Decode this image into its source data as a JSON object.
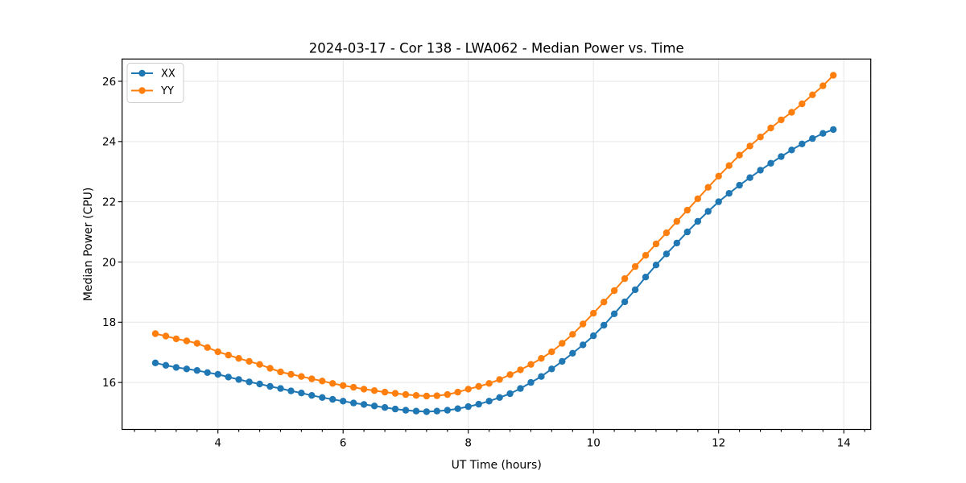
{
  "chart_data": {
    "type": "line",
    "title": "2024-03-17 - Cor 138 - LWA062 - Median Power vs. Time",
    "xlabel": "UT Time (hours)",
    "ylabel": "Median Power (CPU)",
    "xlim": [
      2.469,
      14.431
    ],
    "ylim": [
      14.44,
      26.74
    ],
    "x_ticks": [
      4,
      6,
      8,
      10,
      12,
      14
    ],
    "y_ticks": [
      16,
      18,
      20,
      22,
      24,
      26
    ],
    "x_minor_ticks": [
      2.667,
      3.0,
      3.333,
      3.667,
      4.333,
      4.667,
      5.0,
      5.333,
      5.667,
      6.333,
      6.667,
      7.0,
      7.333,
      7.667,
      8.333,
      8.667,
      9.0,
      9.333,
      9.667,
      10.333,
      10.667,
      11.0,
      11.333,
      11.667,
      12.333,
      12.667,
      13.0,
      13.333,
      13.667,
      14.333
    ],
    "grid": true,
    "legend_position": "upper left",
    "marker": "circle",
    "x": [
      3.0,
      3.167,
      3.333,
      3.5,
      3.667,
      3.833,
      4.0,
      4.167,
      4.333,
      4.5,
      4.667,
      4.833,
      5.0,
      5.167,
      5.333,
      5.5,
      5.667,
      5.833,
      6.0,
      6.167,
      6.333,
      6.5,
      6.667,
      6.833,
      7.0,
      7.167,
      7.333,
      7.5,
      7.667,
      7.833,
      8.0,
      8.167,
      8.333,
      8.5,
      8.667,
      8.833,
      9.0,
      9.167,
      9.333,
      9.5,
      9.667,
      9.833,
      10.0,
      10.167,
      10.333,
      10.5,
      10.667,
      10.833,
      11.0,
      11.167,
      11.333,
      11.5,
      11.667,
      11.833,
      12.0,
      12.167,
      12.333,
      12.5,
      12.667,
      12.833,
      13.0,
      13.167,
      13.333,
      13.5,
      13.667,
      13.833
    ],
    "series": [
      {
        "name": "XX",
        "color": "#1f77b4",
        "values": [
          16.65,
          16.57,
          16.5,
          16.45,
          16.4,
          16.33,
          16.27,
          16.18,
          16.1,
          16.02,
          15.95,
          15.87,
          15.8,
          15.72,
          15.65,
          15.57,
          15.5,
          15.44,
          15.38,
          15.32,
          15.27,
          15.22,
          15.17,
          15.12,
          15.08,
          15.05,
          15.03,
          15.05,
          15.08,
          15.13,
          15.2,
          15.28,
          15.38,
          15.5,
          15.63,
          15.8,
          16.0,
          16.2,
          16.45,
          16.7,
          16.97,
          17.25,
          17.55,
          17.9,
          18.28,
          18.68,
          19.08,
          19.5,
          19.9,
          20.27,
          20.63,
          21.0,
          21.35,
          21.68,
          22.0,
          22.28,
          22.55,
          22.8,
          23.05,
          23.28,
          23.5,
          23.72,
          23.92,
          24.1,
          24.27,
          24.4
        ]
      },
      {
        "name": "YY",
        "color": "#ff7f0e",
        "values": [
          17.62,
          17.54,
          17.45,
          17.38,
          17.3,
          17.16,
          17.02,
          16.91,
          16.8,
          16.7,
          16.6,
          16.47,
          16.35,
          16.27,
          16.2,
          16.12,
          16.05,
          15.97,
          15.9,
          15.84,
          15.78,
          15.73,
          15.68,
          15.64,
          15.6,
          15.57,
          15.55,
          15.56,
          15.6,
          15.68,
          15.78,
          15.87,
          15.97,
          16.1,
          16.26,
          16.42,
          16.6,
          16.8,
          17.02,
          17.3,
          17.6,
          17.94,
          18.3,
          18.67,
          19.05,
          19.45,
          19.85,
          20.22,
          20.6,
          20.97,
          21.35,
          21.72,
          22.1,
          22.48,
          22.85,
          23.2,
          23.55,
          23.85,
          24.15,
          24.45,
          24.72,
          24.97,
          25.25,
          25.55,
          25.85,
          26.2
        ]
      }
    ]
  },
  "legend": {
    "items": [
      {
        "label": "XX",
        "color": "#1f77b4"
      },
      {
        "label": "YY",
        "color": "#ff7f0e"
      }
    ]
  }
}
